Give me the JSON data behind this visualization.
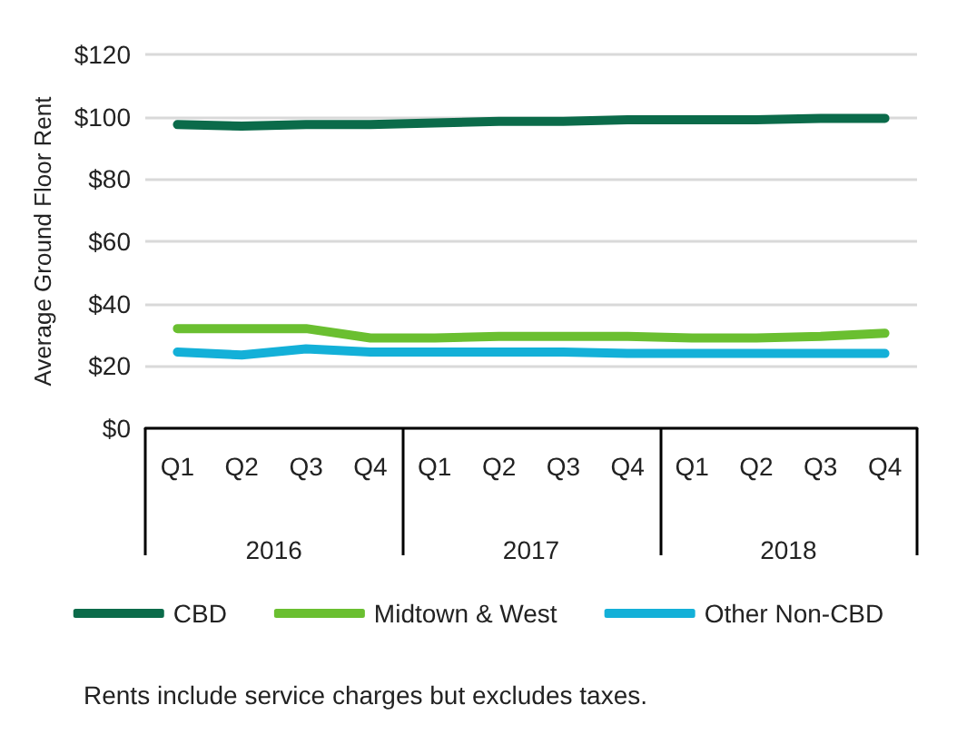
{
  "chart_data": {
    "type": "line",
    "ylabel": "Average Ground Floor Rent",
    "categories": [
      "Q1",
      "Q2",
      "Q3",
      "Q4",
      "Q1",
      "Q2",
      "Q3",
      "Q4",
      "Q1",
      "Q2",
      "Q3",
      "Q4"
    ],
    "series": [
      {
        "name": "CBD",
        "color": "#0b6b4a",
        "values": [
          97.5,
          97,
          97.5,
          97.5,
          98,
          98.5,
          98.5,
          99,
          99,
          99,
          99.5,
          99.5
        ]
      },
      {
        "name": "Midtown & West",
        "color": "#6abf30",
        "values": [
          32,
          32,
          32,
          29,
          29,
          29.5,
          29.5,
          29.5,
          29,
          29,
          29.5,
          30.5
        ]
      },
      {
        "name": "Other Non-CBD",
        "color": "#13b0d8",
        "values": [
          24.5,
          23.5,
          25.5,
          24.5,
          24.5,
          24.5,
          24.5,
          24,
          24,
          24,
          24,
          24
        ]
      }
    ],
    "ylim": [
      0,
      120
    ],
    "yticks": [
      {
        "value": 0,
        "label": "$0"
      },
      {
        "value": 20,
        "label": "$20"
      },
      {
        "value": 40,
        "label": "$40"
      },
      {
        "value": 60,
        "label": "$60"
      },
      {
        "value": 80,
        "label": "$80"
      },
      {
        "value": 100,
        "label": "$100"
      },
      {
        "value": 120,
        "label": "$120"
      }
    ],
    "grid": "y",
    "legend": "bottom",
    "marker": "none",
    "line_style": "solid",
    "annotations": [
      "2016",
      "2017",
      "2018",
      "Rents include service charges but excludes taxes."
    ]
  }
}
